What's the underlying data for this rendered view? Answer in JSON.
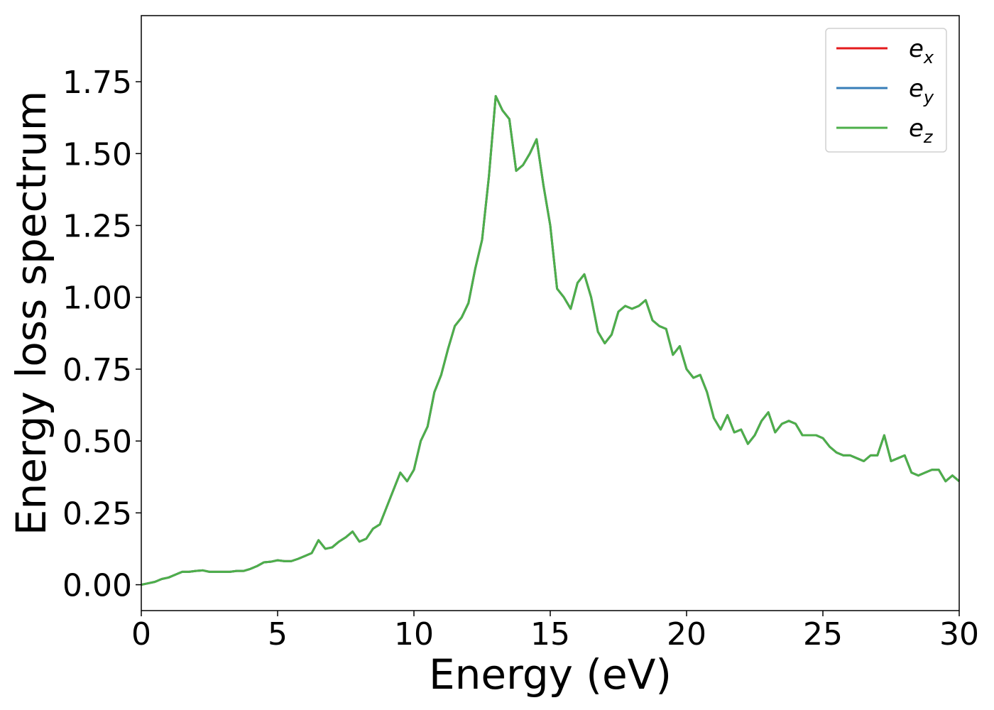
{
  "chart_data": {
    "type": "line",
    "xlabel": "Energy (eV)",
    "ylabel": "Energy loss spectrum",
    "x": [
      0,
      0.25,
      0.5,
      0.75,
      1,
      1.25,
      1.5,
      1.75,
      2,
      2.25,
      2.5,
      2.75,
      3,
      3.25,
      3.5,
      3.75,
      4,
      4.25,
      4.5,
      4.75,
      5,
      5.25,
      5.5,
      5.75,
      6,
      6.25,
      6.5,
      6.75,
      7,
      7.25,
      7.5,
      7.75,
      8,
      8.25,
      8.5,
      8.75,
      9,
      9.25,
      9.5,
      9.75,
      10,
      10.25,
      10.5,
      10.75,
      11,
      11.25,
      11.5,
      11.75,
      12,
      12.25,
      12.5,
      12.75,
      13,
      13.25,
      13.5,
      13.75,
      14,
      14.25,
      14.5,
      14.75,
      15,
      15.25,
      15.5,
      15.75,
      16,
      16.25,
      16.5,
      16.75,
      17,
      17.25,
      17.5,
      17.75,
      18,
      18.25,
      18.5,
      18.75,
      19,
      19.25,
      19.5,
      19.75,
      20,
      20.25,
      20.5,
      20.75,
      21,
      21.25,
      21.5,
      21.75,
      22,
      22.25,
      22.5,
      22.75,
      23,
      23.25,
      23.5,
      23.75,
      24,
      24.25,
      24.5,
      24.75,
      25,
      25.25,
      25.5,
      25.75,
      26,
      26.25,
      26.5,
      26.75,
      27,
      27.25,
      27.5,
      27.75,
      28,
      28.25,
      28.5,
      28.75,
      29,
      29.25,
      29.5,
      29.75,
      30
    ],
    "series": [
      {
        "name": "e_x",
        "color": "#e41a1c",
        "values": [
          0,
          0.005,
          0.01,
          0.02,
          0.025,
          0.035,
          0.045,
          0.045,
          0.048,
          0.05,
          0.045,
          0.045,
          0.045,
          0.045,
          0.048,
          0.048,
          0.055,
          0.065,
          0.078,
          0.08,
          0.085,
          0.082,
          0.082,
          0.09,
          0.1,
          0.11,
          0.155,
          0.125,
          0.13,
          0.15,
          0.165,
          0.185,
          0.15,
          0.16,
          0.195,
          0.21,
          0.27,
          0.33,
          0.39,
          0.36,
          0.4,
          0.5,
          0.55,
          0.67,
          0.73,
          0.82,
          0.9,
          0.93,
          0.98,
          1.1,
          1.2,
          1.42,
          1.7,
          1.65,
          1.62,
          1.44,
          1.46,
          1.5,
          1.55,
          1.39,
          1.25,
          1.03,
          1.0,
          0.96,
          1.05,
          1.08,
          1.0,
          0.88,
          0.84,
          0.87,
          0.95,
          0.97,
          0.96,
          0.97,
          0.99,
          0.92,
          0.9,
          0.89,
          0.8,
          0.83,
          0.75,
          0.72,
          0.73,
          0.67,
          0.58,
          0.54,
          0.59,
          0.53,
          0.54,
          0.49,
          0.52,
          0.57,
          0.6,
          0.53,
          0.56,
          0.57,
          0.56,
          0.52,
          0.52,
          0.52,
          0.51,
          0.48,
          0.46,
          0.45,
          0.45,
          0.44,
          0.43,
          0.45,
          0.45,
          0.52,
          0.43,
          0.44,
          0.45,
          0.39,
          0.38,
          0.39,
          0.4,
          0.4,
          0.36,
          0.38,
          0.36
        ]
      },
      {
        "name": "e_y",
        "color": "#377eb8",
        "values": [
          0,
          0.005,
          0.01,
          0.02,
          0.025,
          0.035,
          0.045,
          0.045,
          0.048,
          0.05,
          0.045,
          0.045,
          0.045,
          0.045,
          0.048,
          0.048,
          0.055,
          0.065,
          0.078,
          0.08,
          0.085,
          0.082,
          0.082,
          0.09,
          0.1,
          0.11,
          0.155,
          0.125,
          0.13,
          0.15,
          0.165,
          0.185,
          0.15,
          0.16,
          0.195,
          0.21,
          0.27,
          0.33,
          0.39,
          0.36,
          0.4,
          0.5,
          0.55,
          0.67,
          0.73,
          0.82,
          0.9,
          0.93,
          0.98,
          1.1,
          1.2,
          1.42,
          1.7,
          1.65,
          1.62,
          1.44,
          1.46,
          1.5,
          1.55,
          1.39,
          1.25,
          1.03,
          1.0,
          0.96,
          1.05,
          1.08,
          1.0,
          0.88,
          0.84,
          0.87,
          0.95,
          0.97,
          0.96,
          0.97,
          0.99,
          0.92,
          0.9,
          0.89,
          0.8,
          0.83,
          0.75,
          0.72,
          0.73,
          0.67,
          0.58,
          0.54,
          0.59,
          0.53,
          0.54,
          0.49,
          0.52,
          0.57,
          0.6,
          0.53,
          0.56,
          0.57,
          0.56,
          0.52,
          0.52,
          0.52,
          0.51,
          0.48,
          0.46,
          0.45,
          0.45,
          0.44,
          0.43,
          0.45,
          0.45,
          0.52,
          0.43,
          0.44,
          0.45,
          0.39,
          0.38,
          0.39,
          0.4,
          0.4,
          0.36,
          0.38,
          0.36
        ]
      },
      {
        "name": "e_z",
        "color": "#4daf4a",
        "values": [
          0,
          0.005,
          0.01,
          0.02,
          0.025,
          0.035,
          0.045,
          0.045,
          0.048,
          0.05,
          0.045,
          0.045,
          0.045,
          0.045,
          0.048,
          0.048,
          0.055,
          0.065,
          0.078,
          0.08,
          0.085,
          0.082,
          0.082,
          0.09,
          0.1,
          0.11,
          0.155,
          0.125,
          0.13,
          0.15,
          0.165,
          0.185,
          0.15,
          0.16,
          0.195,
          0.21,
          0.27,
          0.33,
          0.39,
          0.36,
          0.4,
          0.5,
          0.55,
          0.67,
          0.73,
          0.82,
          0.9,
          0.93,
          0.98,
          1.1,
          1.2,
          1.42,
          1.7,
          1.65,
          1.62,
          1.44,
          1.46,
          1.5,
          1.55,
          1.39,
          1.25,
          1.03,
          1.0,
          0.96,
          1.05,
          1.08,
          1.0,
          0.88,
          0.84,
          0.87,
          0.95,
          0.97,
          0.96,
          0.97,
          0.99,
          0.92,
          0.9,
          0.89,
          0.8,
          0.83,
          0.75,
          0.72,
          0.73,
          0.67,
          0.58,
          0.54,
          0.59,
          0.53,
          0.54,
          0.49,
          0.52,
          0.57,
          0.6,
          0.53,
          0.56,
          0.57,
          0.56,
          0.52,
          0.52,
          0.52,
          0.51,
          0.48,
          0.46,
          0.45,
          0.45,
          0.44,
          0.43,
          0.45,
          0.45,
          0.52,
          0.43,
          0.44,
          0.45,
          0.39,
          0.38,
          0.39,
          0.4,
          0.4,
          0.36,
          0.38,
          0.36
        ]
      }
    ],
    "xlim": [
      0,
      30
    ],
    "xticks": [
      0,
      5,
      10,
      15,
      20,
      25,
      30
    ],
    "ylim": [
      -0.09,
      1.98
    ],
    "yticks": [
      {
        "value": 0,
        "label": "0.00"
      },
      {
        "value": 0.25,
        "label": "0.25"
      },
      {
        "value": 0.5,
        "label": "0.50"
      },
      {
        "value": 0.75,
        "label": "0.75"
      },
      {
        "value": 1,
        "label": "1.00"
      },
      {
        "value": 1.25,
        "label": "1.25"
      },
      {
        "value": 1.5,
        "label": "1.50"
      },
      {
        "value": 1.75,
        "label": "1.75"
      }
    ],
    "grid": false,
    "legend": "upper right"
  }
}
